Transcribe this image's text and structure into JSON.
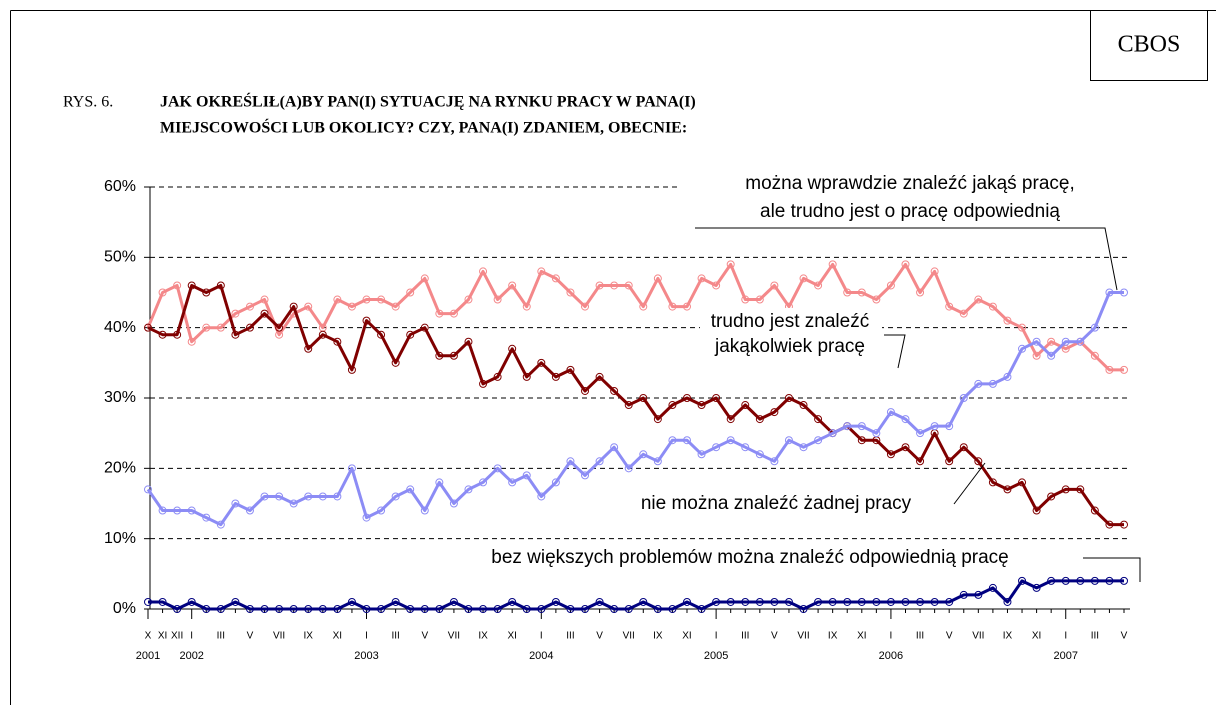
{
  "header": {
    "brand": "CBOS",
    "figure": "RYS. 6.",
    "title_lines": [
      "JAK OKREŚLIŁ(A)BY PAN(I) SYTUACJĘ NA RYNKU PRACY W PANA(I)",
      "MIEJSCOWOŚCI LUB OKOLICY? CZY, PANA(I) ZDANIEM, OBECNIE:"
    ]
  },
  "chart_data": {
    "type": "line",
    "categories": [
      "X",
      "XI",
      "XII",
      "I",
      null,
      "III",
      null,
      "V",
      null,
      "VII",
      null,
      "IX",
      null,
      "XI",
      null,
      "I",
      null,
      "III",
      null,
      "V",
      null,
      "VII",
      null,
      "IX",
      null,
      "XI",
      null,
      "I",
      null,
      "III",
      null,
      "V",
      null,
      "VII",
      null,
      "IX",
      null,
      "XI",
      null,
      "I",
      null,
      "III",
      null,
      "V",
      null,
      "VII",
      null,
      "IX",
      null,
      "XI",
      null,
      "I",
      null,
      "III",
      null,
      "V",
      null,
      "VII",
      null,
      "IX",
      null,
      "XI",
      null,
      "I",
      null,
      "III",
      null,
      "V"
    ],
    "year_labels": [
      "2001",
      null,
      null,
      "2002",
      null,
      null,
      null,
      null,
      null,
      null,
      null,
      null,
      null,
      null,
      null,
      "2003",
      null,
      null,
      null,
      null,
      null,
      null,
      null,
      null,
      null,
      null,
      null,
      "2004",
      null,
      null,
      null,
      null,
      null,
      null,
      null,
      null,
      null,
      null,
      null,
      "2005",
      null,
      null,
      null,
      null,
      null,
      null,
      null,
      null,
      null,
      null,
      null,
      "2006",
      null,
      null,
      null,
      null,
      null,
      null,
      null,
      null,
      null,
      null,
      null,
      "2007",
      null,
      null,
      null,
      null
    ],
    "ylim": [
      0,
      60
    ],
    "yticks": [
      {
        "value": 0,
        "label": "0%"
      },
      {
        "value": 10,
        "label": "10%"
      },
      {
        "value": 20,
        "label": "20%"
      },
      {
        "value": 30,
        "label": "30%"
      },
      {
        "value": 40,
        "label": "40%"
      },
      {
        "value": 50,
        "label": "50%"
      },
      {
        "value": 60,
        "label": "60%"
      }
    ],
    "grid": true,
    "series": [
      {
        "label_lines": [
          "trudno jest znaleźć",
          "jakąkolwiek pracę"
        ],
        "color": "#f4888a",
        "values": [
          40,
          45,
          46,
          38,
          40,
          40,
          42,
          43,
          44,
          39,
          42,
          43,
          40,
          44,
          43,
          44,
          44,
          43,
          45,
          47,
          42,
          42,
          44,
          48,
          44,
          46,
          43,
          48,
          47,
          45,
          43,
          46,
          46,
          46,
          43,
          47,
          43,
          43,
          47,
          46,
          49,
          44,
          44,
          46,
          43,
          47,
          46,
          49,
          45,
          45,
          44,
          46,
          49,
          45,
          48,
          43,
          42,
          44,
          43,
          41,
          40,
          36,
          38,
          37,
          38,
          36,
          34,
          34
        ]
      },
      {
        "label_lines": [
          "nie można znaleźć żadnej pracy"
        ],
        "color": "#800000",
        "values": [
          40,
          39,
          39,
          46,
          45,
          46,
          39,
          40,
          42,
          40,
          43,
          37,
          39,
          38,
          34,
          41,
          39,
          35,
          39,
          40,
          36,
          36,
          38,
          32,
          33,
          37,
          33,
          35,
          33,
          34,
          31,
          33,
          31,
          29,
          30,
          27,
          29,
          30,
          29,
          30,
          27,
          29,
          27,
          28,
          30,
          29,
          27,
          25,
          26,
          24,
          24,
          22,
          23,
          21,
          25,
          21,
          23,
          21,
          18,
          17,
          18,
          14,
          16,
          17,
          17,
          14,
          12,
          12
        ]
      },
      {
        "label_lines": [
          "można wprawdzie znaleźć jakąś pracę,",
          "ale trudno jest o pracę odpowiednią"
        ],
        "color": "#8c8cf5",
        "values": [
          17,
          14,
          14,
          14,
          13,
          12,
          15,
          14,
          16,
          16,
          15,
          16,
          16,
          16,
          20,
          13,
          14,
          16,
          17,
          14,
          18,
          15,
          17,
          18,
          20,
          18,
          19,
          16,
          18,
          21,
          19,
          21,
          23,
          20,
          22,
          21,
          24,
          24,
          22,
          23,
          24,
          23,
          22,
          21,
          24,
          23,
          24,
          25,
          26,
          26,
          25,
          28,
          27,
          25,
          26,
          26,
          30,
          32,
          32,
          33,
          37,
          38,
          36,
          38,
          38,
          40,
          45,
          45
        ]
      },
      {
        "label_lines": [
          "bez większych problemów można znaleźć odpowiednią pracę"
        ],
        "color": "#000080",
        "values": [
          1,
          1,
          0,
          1,
          0,
          0,
          1,
          0,
          0,
          0,
          0,
          0,
          0,
          0,
          1,
          0,
          0,
          1,
          0,
          0,
          0,
          1,
          0,
          0,
          0,
          1,
          0,
          0,
          1,
          0,
          0,
          1,
          0,
          0,
          1,
          0,
          0,
          1,
          0,
          1,
          1,
          1,
          1,
          1,
          1,
          0,
          1,
          1,
          1,
          1,
          1,
          1,
          1,
          1,
          1,
          1,
          2,
          2,
          3,
          1,
          4,
          3,
          4,
          4,
          4,
          4,
          4,
          4
        ]
      }
    ]
  }
}
